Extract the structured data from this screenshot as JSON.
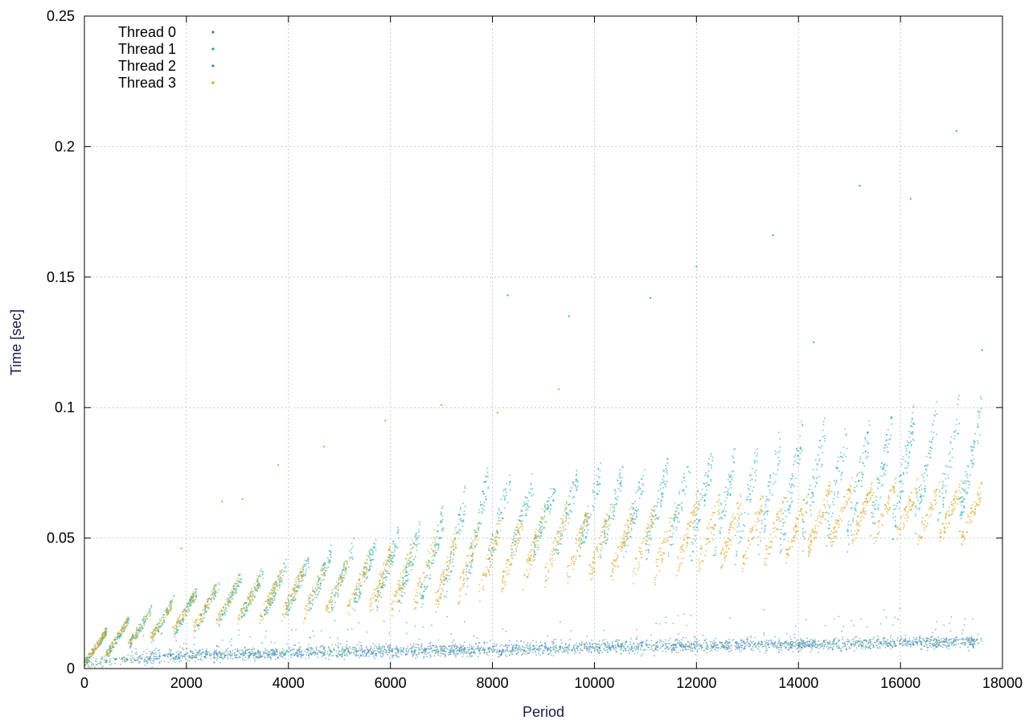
{
  "chart_data": {
    "type": "scatter",
    "title": "",
    "xlabel": "Period",
    "ylabel": "Time [sec]",
    "xlim": [
      0,
      18000
    ],
    "ylim": [
      0,
      0.25
    ],
    "x_ticks": [
      "0",
      "2000",
      "4000",
      "6000",
      "8000",
      "10000",
      "12000",
      "14000",
      "16000",
      "18000"
    ],
    "y_ticks": [
      "0",
      "0.05",
      "0.1",
      "0.15",
      "0.2",
      "0.25"
    ],
    "grid": true,
    "legend_position": "top-left",
    "series": [
      {
        "name": "Thread 0",
        "color": "#2a8f6a",
        "trend": [
          [
            0,
            0.002
          ],
          [
            1000,
            0.004
          ],
          [
            2000,
            0.005
          ],
          [
            4000,
            0.006
          ],
          [
            6000,
            0.007
          ],
          [
            8000,
            0.007
          ],
          [
            10000,
            0.008
          ],
          [
            12000,
            0.009
          ],
          [
            14000,
            0.009
          ],
          [
            16000,
            0.01
          ],
          [
            17600,
            0.01
          ]
        ],
        "spread": 0.003
      },
      {
        "name": "Thread 1",
        "color": "#1aa5a0",
        "sawtooth": [
          [
            0,
            0.002,
            0.01
          ],
          [
            1000,
            0.01,
            0.02
          ],
          [
            2000,
            0.015,
            0.028
          ],
          [
            3000,
            0.02,
            0.035
          ],
          [
            4000,
            0.022,
            0.04
          ],
          [
            5000,
            0.025,
            0.045
          ],
          [
            6000,
            0.025,
            0.05
          ],
          [
            7000,
            0.028,
            0.058
          ],
          [
            8000,
            0.04,
            0.075
          ],
          [
            9000,
            0.045,
            0.07
          ],
          [
            10000,
            0.045,
            0.075
          ],
          [
            11000,
            0.045,
            0.075
          ],
          [
            12000,
            0.045,
            0.08
          ],
          [
            13000,
            0.045,
            0.08
          ],
          [
            14000,
            0.05,
            0.09
          ],
          [
            15000,
            0.05,
            0.09
          ],
          [
            16000,
            0.055,
            0.095
          ],
          [
            17600,
            0.06,
            0.1
          ]
        ],
        "outliers": [
          [
            8300,
            0.143
          ],
          [
            9500,
            0.135
          ],
          [
            11100,
            0.142
          ],
          [
            13500,
            0.166
          ],
          [
            14300,
            0.125
          ],
          [
            15200,
            0.185
          ],
          [
            16200,
            0.18
          ],
          [
            17100,
            0.206
          ],
          [
            12000,
            0.154
          ],
          [
            17600,
            0.122
          ]
        ]
      },
      {
        "name": "Thread 2",
        "color": "#3a7fd0",
        "trend": [
          [
            1000,
            0.004
          ],
          [
            2000,
            0.005
          ],
          [
            4000,
            0.006
          ],
          [
            6000,
            0.007
          ],
          [
            8000,
            0.008
          ],
          [
            10000,
            0.008
          ],
          [
            12000,
            0.009
          ],
          [
            14000,
            0.009
          ],
          [
            16000,
            0.01
          ],
          [
            17600,
            0.01
          ]
        ],
        "spread": 0.004
      },
      {
        "name": "Thread 3",
        "color": "#d4a017",
        "sawtooth": [
          [
            0,
            0.002,
            0.01
          ],
          [
            1000,
            0.01,
            0.02
          ],
          [
            2000,
            0.015,
            0.027
          ],
          [
            3000,
            0.018,
            0.033
          ],
          [
            4000,
            0.02,
            0.037
          ],
          [
            5000,
            0.022,
            0.04
          ],
          [
            6000,
            0.023,
            0.045
          ],
          [
            7000,
            0.025,
            0.05
          ],
          [
            8000,
            0.03,
            0.055
          ],
          [
            9000,
            0.035,
            0.06
          ],
          [
            10000,
            0.035,
            0.06
          ],
          [
            11000,
            0.035,
            0.06
          ],
          [
            12000,
            0.04,
            0.065
          ],
          [
            13000,
            0.04,
            0.065
          ],
          [
            14000,
            0.045,
            0.065
          ],
          [
            15000,
            0.05,
            0.07
          ],
          [
            16000,
            0.05,
            0.07
          ],
          [
            17600,
            0.05,
            0.07
          ]
        ],
        "outliers": [
          [
            3800,
            0.078
          ],
          [
            4700,
            0.085
          ],
          [
            5900,
            0.095
          ],
          [
            7000,
            0.101
          ],
          [
            8100,
            0.098
          ],
          [
            9300,
            0.107
          ],
          [
            1900,
            0.046
          ],
          [
            2700,
            0.064
          ],
          [
            3100,
            0.065
          ]
        ]
      }
    ]
  }
}
